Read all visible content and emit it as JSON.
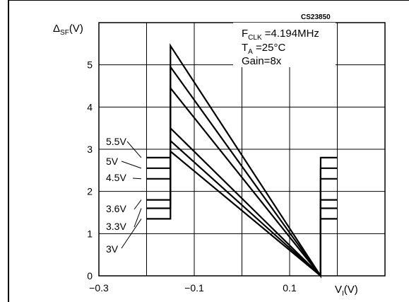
{
  "chart_data": {
    "type": "line",
    "code": "CS23850",
    "ylabel_main": "Δ",
    "ylabel_sub": "SF",
    "ylabel_unit": "(V)",
    "xlabel_main": "V",
    "xlabel_sub": "I",
    "xlabel_unit": "(V)",
    "xlim": [
      -0.3,
      0.3
    ],
    "ylim": [
      0,
      6
    ],
    "xticks": [
      -0.3,
      -0.1,
      0.1
    ],
    "xtick_labels": [
      "−0.3",
      "−0.1",
      "0.1"
    ],
    "yticks": [
      0,
      1,
      2,
      3,
      4,
      5
    ],
    "ytick_labels": [
      "0",
      "1",
      "2",
      "3",
      "4",
      "5"
    ],
    "conditions": [
      {
        "main": "F",
        "sub": "CLK",
        "rest": " =4.194MHz"
      },
      {
        "main": "T",
        "sub": "A",
        "rest": " =25°C"
      },
      {
        "main": "Gain=8x",
        "sub": "",
        "rest": ""
      }
    ],
    "series": [
      {
        "name": "5.5V",
        "points": [
          [
            -0.2,
            2.8
          ],
          [
            -0.15,
            2.8
          ],
          [
            -0.15,
            5.45
          ],
          [
            0.165,
            0.0
          ],
          [
            0.165,
            2.8
          ],
          [
            0.2,
            2.8
          ]
        ]
      },
      {
        "name": "5V",
        "points": [
          [
            -0.2,
            2.55
          ],
          [
            -0.15,
            2.55
          ],
          [
            -0.15,
            4.95
          ],
          [
            0.165,
            0.0
          ],
          [
            0.165,
            2.55
          ],
          [
            0.2,
            2.55
          ]
        ]
      },
      {
        "name": "4.5V",
        "points": [
          [
            -0.2,
            2.3
          ],
          [
            -0.15,
            2.3
          ],
          [
            -0.15,
            4.45
          ],
          [
            0.165,
            0.0
          ],
          [
            0.165,
            2.3
          ],
          [
            0.2,
            2.3
          ]
        ]
      },
      {
        "name": "3.6V",
        "points": [
          [
            -0.2,
            1.8
          ],
          [
            -0.15,
            1.8
          ],
          [
            -0.15,
            3.5
          ],
          [
            0.165,
            0.0
          ],
          [
            0.165,
            1.8
          ],
          [
            0.2,
            1.8
          ]
        ]
      },
      {
        "name": "3.3V",
        "points": [
          [
            -0.2,
            1.6
          ],
          [
            -0.15,
            1.6
          ],
          [
            -0.15,
            3.2
          ],
          [
            0.165,
            0.0
          ],
          [
            0.165,
            1.6
          ],
          [
            0.2,
            1.6
          ]
        ]
      },
      {
        "name": "3V",
        "points": [
          [
            -0.2,
            1.35
          ],
          [
            -0.15,
            1.35
          ],
          [
            -0.15,
            2.95
          ],
          [
            0.165,
            0.0
          ],
          [
            0.165,
            1.35
          ],
          [
            0.2,
            1.35
          ]
        ]
      }
    ],
    "grid": true
  }
}
